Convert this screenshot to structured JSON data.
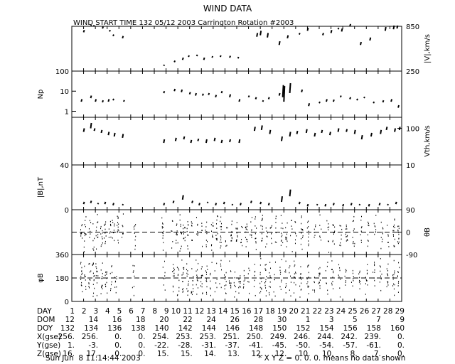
{
  "title": "WIND DATA",
  "subtitle": "WIND START TIME 132 05/12 2003 Carrington Rotation #2003",
  "colors": {
    "foreground": "#000000",
    "background": "#ffffff"
  },
  "chart_data": [
    {
      "panel": "speed",
      "type": "scatter",
      "ylabel": "|V|,km/s",
      "ylim": [
        250,
        850
      ],
      "y_axis_side": "right",
      "y_ticks": [
        {
          "value": 250,
          "label": "250"
        },
        {
          "value": 850,
          "label": "850"
        }
      ],
      "segments": [
        [
          2.0,
          770,
          800
        ],
        [
          2.6,
          860,
          870
        ],
        [
          2.85,
          850,
          865
        ],
        [
          3.6,
          820,
          845
        ],
        [
          4.2,
          780,
          800
        ],
        [
          4.5,
          720,
          740
        ],
        [
          5.3,
          690,
          720
        ],
        [
          8.8,
          320,
          335
        ],
        [
          9.7,
          370,
          390
        ],
        [
          10.4,
          400,
          430
        ],
        [
          10.9,
          440,
          460
        ],
        [
          11.6,
          450,
          470
        ],
        [
          12.2,
          400,
          430
        ],
        [
          12.9,
          430,
          450
        ],
        [
          13.6,
          440,
          460
        ],
        [
          14.4,
          430,
          455
        ],
        [
          15.1,
          420,
          440
        ],
        [
          16.7,
          710,
          760
        ],
        [
          17.0,
          730,
          790
        ],
        [
          17.6,
          700,
          760
        ],
        [
          18.6,
          600,
          650
        ],
        [
          19.3,
          690,
          730
        ],
        [
          20.3,
          740,
          760
        ],
        [
          21.0,
          790,
          830
        ],
        [
          22.3,
          730,
          760
        ],
        [
          23.0,
          760,
          800
        ],
        [
          23.6,
          810,
          830
        ],
        [
          23.9,
          780,
          820
        ],
        [
          24.6,
          850,
          880
        ],
        [
          25.5,
          600,
          640
        ],
        [
          26.3,
          660,
          700
        ],
        [
          27.6,
          790,
          840
        ],
        [
          28.3,
          810,
          860
        ],
        [
          28.6,
          820,
          860
        ]
      ]
    },
    {
      "panel": "density",
      "type": "scatter",
      "ylabel": "Np",
      "yscale": "log",
      "ylim": [
        0.5,
        100
      ],
      "y_axis_side": "left",
      "y_ticks": [
        {
          "value": 1,
          "label": "1"
        },
        {
          "value": 10,
          "label": "10"
        },
        {
          "value": 100,
          "label": "100"
        }
      ],
      "segments": [
        [
          1.8,
          3.0,
          4.0
        ],
        [
          2.6,
          4.5,
          6.0
        ],
        [
          3.0,
          3.0,
          4.0
        ],
        [
          3.6,
          2.8,
          3.5
        ],
        [
          4.1,
          3.0,
          4.0
        ],
        [
          4.5,
          3.5,
          4.2
        ],
        [
          5.4,
          3.0,
          3.6
        ],
        [
          8.8,
          8.0,
          10.0
        ],
        [
          9.7,
          10.0,
          13.0
        ],
        [
          10.3,
          9.0,
          12.0
        ],
        [
          11.0,
          7.0,
          9.0
        ],
        [
          11.5,
          6.0,
          8.0
        ],
        [
          12.1,
          6.0,
          7.5
        ],
        [
          12.6,
          6.5,
          8.0
        ],
        [
          13.2,
          5.0,
          6.5
        ],
        [
          13.7,
          8.0,
          10.0
        ],
        [
          14.4,
          5.0,
          7.0
        ],
        [
          15.2,
          3.0,
          4.0
        ],
        [
          16.0,
          5.0,
          6.0
        ],
        [
          16.6,
          4.0,
          5.0
        ],
        [
          17.2,
          3.0,
          3.5
        ],
        [
          17.7,
          4.0,
          5.0
        ],
        [
          18.6,
          6.0,
          8.0
        ],
        [
          18.9,
          5.0,
          20.0
        ],
        [
          19.0,
          3.0,
          18.0
        ],
        [
          19.5,
          8.0,
          25.0
        ],
        [
          20.5,
          9.0,
          12.0
        ],
        [
          21.1,
          1.8,
          2.5
        ],
        [
          22.0,
          2.5,
          3.0
        ],
        [
          22.6,
          3.0,
          4.0
        ],
        [
          23.2,
          3.0,
          3.8
        ],
        [
          23.8,
          5.0,
          6.0
        ],
        [
          24.6,
          4.0,
          5.0
        ],
        [
          25.2,
          3.5,
          4.2
        ],
        [
          25.8,
          4.5,
          5.2
        ],
        [
          26.6,
          2.5,
          3.0
        ],
        [
          27.4,
          2.8,
          3.5
        ],
        [
          28.1,
          3.0,
          4.0
        ],
        [
          28.7,
          1.5,
          2.0
        ]
      ]
    },
    {
      "panel": "thermal_speed",
      "type": "scatter",
      "ylabel": "Vth,km/s",
      "yscale": "log",
      "ylim": [
        10,
        200
      ],
      "y_axis_side": "right",
      "y_ticks": [
        {
          "value": 10,
          "label": "10"
        },
        {
          "value": 100,
          "label": "100"
        }
      ],
      "segments": [
        [
          2.0,
          80,
          100
        ],
        [
          2.6,
          100,
          140
        ],
        [
          2.9,
          85,
          100
        ],
        [
          3.5,
          75,
          90
        ],
        [
          4.1,
          65,
          80
        ],
        [
          4.6,
          60,
          75
        ],
        [
          5.3,
          55,
          70
        ],
        [
          8.8,
          40,
          50
        ],
        [
          9.8,
          45,
          55
        ],
        [
          10.5,
          50,
          60
        ],
        [
          11.1,
          40,
          48
        ],
        [
          11.7,
          45,
          52
        ],
        [
          12.4,
          40,
          50
        ],
        [
          13.1,
          45,
          55
        ],
        [
          13.7,
          40,
          48
        ],
        [
          14.4,
          42,
          50
        ],
        [
          15.2,
          40,
          50
        ],
        [
          16.5,
          85,
          110
        ],
        [
          17.1,
          90,
          120
        ],
        [
          17.8,
          70,
          90
        ],
        [
          18.8,
          45,
          60
        ],
        [
          19.5,
          60,
          80
        ],
        [
          20.1,
          70,
          85
        ],
        [
          20.9,
          75,
          95
        ],
        [
          21.6,
          60,
          75
        ],
        [
          22.2,
          75,
          90
        ],
        [
          22.9,
          65,
          80
        ],
        [
          23.6,
          80,
          100
        ],
        [
          24.3,
          80,
          95
        ],
        [
          25.0,
          70,
          90
        ],
        [
          25.6,
          50,
          65
        ],
        [
          26.4,
          60,
          75
        ],
        [
          27.2,
          70,
          90
        ],
        [
          27.7,
          90,
          110
        ],
        [
          28.4,
          80,
          100
        ],
        [
          28.8,
          90,
          110
        ]
      ]
    },
    {
      "panel": "magnetic_field",
      "type": "scatter",
      "ylabel": "|B|,nT",
      "ylim": [
        0,
        40
      ],
      "y_axis_side": "left",
      "y_ticks": [
        {
          "value": 0,
          "label": "0"
        },
        {
          "value": 40,
          "label": "40"
        }
      ],
      "segments": [
        [
          2.0,
          5,
          7
        ],
        [
          2.6,
          6,
          8
        ],
        [
          3.2,
          5,
          6
        ],
        [
          3.8,
          5,
          7
        ],
        [
          4.5,
          4,
          6
        ],
        [
          5.3,
          4,
          5
        ],
        [
          8.8,
          4,
          6
        ],
        [
          9.6,
          6,
          8
        ],
        [
          10.4,
          9,
          13
        ],
        [
          11.2,
          6,
          8
        ],
        [
          11.8,
          4,
          6
        ],
        [
          12.5,
          6,
          7
        ],
        [
          13.2,
          4,
          6
        ],
        [
          13.9,
          5,
          7
        ],
        [
          14.6,
          4,
          5
        ],
        [
          15.3,
          4,
          6
        ],
        [
          16.2,
          6,
          8
        ],
        [
          17.0,
          5,
          7
        ],
        [
          17.7,
          4,
          6
        ],
        [
          18.8,
          7,
          12
        ],
        [
          19.5,
          12,
          18
        ],
        [
          20.3,
          5,
          7
        ],
        [
          21.0,
          3,
          5
        ],
        [
          21.8,
          4,
          5
        ],
        [
          22.5,
          3,
          5
        ],
        [
          23.2,
          4,
          6
        ],
        [
          24.0,
          3,
          5
        ],
        [
          24.7,
          4,
          6
        ],
        [
          25.4,
          4,
          5
        ],
        [
          26.2,
          3,
          5
        ],
        [
          27.1,
          4,
          6
        ],
        [
          27.8,
          4,
          5
        ],
        [
          28.5,
          5,
          7
        ]
      ]
    },
    {
      "panel": "theta_b",
      "type": "scatter",
      "ylabel": "θB",
      "ylim": [
        -90,
        90
      ],
      "y_axis_side": "right",
      "reference_line": 0,
      "y_ticks": [
        {
          "value": -90,
          "label": "-90"
        },
        {
          "value": 0,
          "label": "0"
        },
        {
          "value": 90,
          "label": "90"
        }
      ],
      "scatter_days": [
        1.8,
        2.1,
        2.5,
        2.8,
        3.1,
        3.5,
        3.8,
        4.2,
        4.5,
        4.9,
        5.3,
        6.3,
        8.7,
        9.5,
        9.9,
        10.2,
        10.5,
        10.8,
        11.2,
        11.6,
        12.0,
        12.4,
        12.9,
        13.3,
        13.6,
        14.1,
        14.5,
        15.0,
        15.4,
        15.8,
        16.2,
        16.6,
        17.1,
        17.5,
        17.9,
        18.3,
        18.8,
        19.2,
        19.6,
        20.0,
        20.5,
        21.0,
        21.6,
        22.1,
        22.7,
        23.2,
        23.8,
        24.3,
        24.9,
        25.5,
        26.1,
        26.7,
        27.3,
        27.8,
        28.3,
        28.7
      ]
    },
    {
      "panel": "phi_b",
      "type": "scatter",
      "ylabel": "φB",
      "ylim": [
        0,
        360
      ],
      "y_axis_side": "left",
      "reference_line": 180,
      "y_ticks": [
        {
          "value": 0,
          "label": "0"
        },
        {
          "value": 180,
          "label": "180"
        },
        {
          "value": 360,
          "label": "360"
        }
      ],
      "scatter_days": [
        1.8,
        2.1,
        2.5,
        2.8,
        3.1,
        3.5,
        3.9,
        4.3,
        4.7,
        6.2,
        8.8,
        9.6,
        10.0,
        10.4,
        10.8,
        11.2,
        11.6,
        12.0,
        12.4,
        12.8,
        13.2,
        13.6,
        14.0,
        14.4,
        14.8,
        15.2,
        15.6,
        16.0,
        16.5,
        17.0,
        17.4,
        17.8,
        18.2,
        18.7,
        19.1,
        19.5,
        19.9,
        20.4,
        21.0,
        21.5,
        22.0,
        22.6,
        23.1,
        23.7,
        24.2,
        24.8,
        25.4,
        26.0,
        26.6,
        27.2,
        27.8,
        28.3,
        28.7
      ]
    }
  ],
  "x_axis": {
    "day_range": [
      1,
      29
    ],
    "rows": [
      {
        "label": "DAY",
        "values": [
          "1",
          "2",
          "3",
          "4",
          "5",
          "6",
          "7",
          "8",
          "9",
          "10",
          "11",
          "12",
          "13",
          "14",
          "15",
          "16",
          "17",
          "18",
          "19",
          "20",
          "21",
          "22",
          "23",
          "24",
          "25",
          "26",
          "27",
          "28",
          "29"
        ]
      },
      {
        "label": "DOM",
        "values": [
          "12",
          "14",
          "16",
          "18",
          "20",
          "22",
          "24",
          "26",
          "28",
          "30",
          "1",
          "3",
          "5",
          "7",
          "9"
        ]
      },
      {
        "label": "DOY",
        "values": [
          "132",
          "134",
          "136",
          "138",
          "140",
          "142",
          "144",
          "146",
          "148",
          "150",
          "152",
          "154",
          "156",
          "158",
          "160"
        ]
      },
      {
        "label": "X(gse)",
        "values": [
          "256.",
          "256.",
          "0.",
          "0.",
          "254.",
          "253.",
          "253.",
          "251.",
          "250.",
          "249.",
          "246.",
          "244.",
          "242.",
          "239.",
          "0."
        ]
      },
      {
        "label": "Y(gse)",
        "values": [
          "1.",
          "-3.",
          "0.",
          "0.",
          "-22.",
          "-28.",
          "-31.",
          "-37.",
          "-41.",
          "-45.",
          "-50.",
          "-54.",
          "-57.",
          "-61.",
          "0."
        ]
      },
      {
        "label": "Z(gse)",
        "values": [
          "16.",
          "17.",
          "0.",
          "0.",
          "15.",
          "15.",
          "14.",
          "13.",
          "12.",
          "12.",
          "10.",
          "10.",
          "8.",
          "7.",
          "0."
        ]
      }
    ]
  },
  "footer": {
    "timestamp": "Sun Jun  8 11:14:44 2003",
    "note": "* X Y Z = 0. 0. 0. means no data shown"
  }
}
